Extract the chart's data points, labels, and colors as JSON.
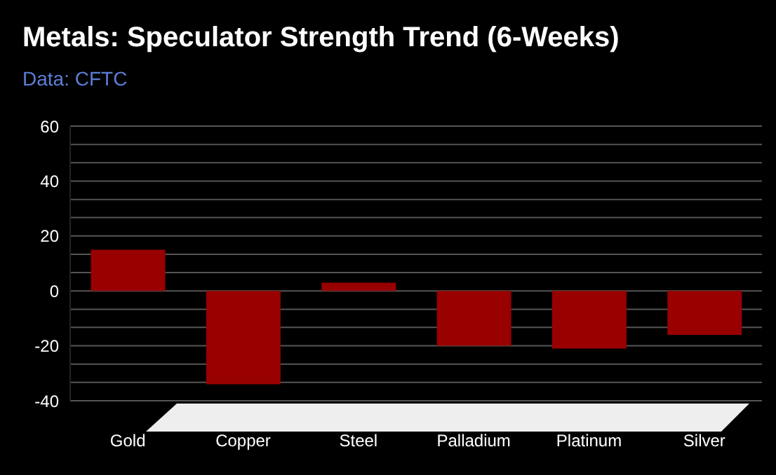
{
  "chart_data": {
    "type": "bar",
    "title": "Metals: Speculator Strength Trend (6-Weeks)",
    "subtitle": "Data: CFTC",
    "categories": [
      "Gold",
      "Copper",
      "Steel",
      "Palladium",
      "Platinum",
      "Silver"
    ],
    "values": [
      15,
      -34,
      3,
      -20,
      -21,
      -16
    ],
    "color": "#990000",
    "ylim": [
      -40,
      60
    ],
    "yticks": [
      -40,
      {
        "value": -33.3,
        "label": null
      },
      {
        "value": -26.7,
        "label": null
      },
      -20,
      {
        "value": -13.3,
        "label": null
      },
      {
        "value": -6.7,
        "label": null
      },
      0,
      {
        "value": 6.7,
        "label": null
      },
      {
        "value": 13.3,
        "label": null
      },
      20,
      {
        "value": 26.7,
        "label": null
      },
      {
        "value": 33.3,
        "label": null
      },
      40,
      {
        "value": 46.7,
        "label": null
      },
      {
        "value": 53.3,
        "label": null
      },
      60
    ],
    "grid": "y",
    "legend": false
  }
}
